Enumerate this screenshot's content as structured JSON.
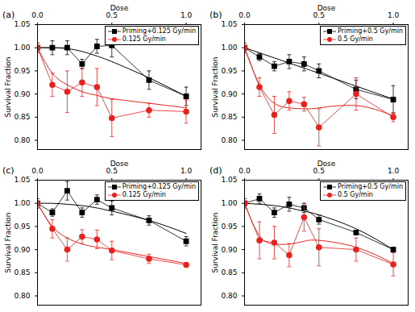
{
  "chart_data": [
    {
      "type": "line",
      "title": "(a)",
      "x_label": "Dose",
      "y_label": "Survival Fraction",
      "x": [
        0,
        0.1,
        0.2,
        0.3,
        0.4,
        0.5,
        0.75,
        1.0
      ],
      "xlim": [
        0,
        1.1
      ],
      "ylim": [
        0.78,
        1.05
      ],
      "xticks": [
        {
          "value": 0,
          "label": "0.0"
        },
        {
          "value": 0.5,
          "label": "0.5"
        },
        {
          "value": 1.0,
          "label": "1.0"
        }
      ],
      "yticks": [
        {
          "value": 0.8,
          "label": "0.80"
        },
        {
          "value": 0.85,
          "label": "0.85"
        },
        {
          "value": 0.9,
          "label": "0.90"
        },
        {
          "value": 0.95,
          "label": "0.95"
        },
        {
          "value": 1.0,
          "label": "1.00"
        },
        {
          "value": 1.05,
          "label": "1.05"
        }
      ],
      "legend": "upper right",
      "series": [
        {
          "name": "Priming+0.125 Gy/min",
          "color": "#000000",
          "marker": "square",
          "line_style": "solid",
          "values": [
            1.0,
            1.0,
            1.0,
            0.965,
            1.003,
            1.005,
            0.93,
            0.895
          ],
          "errors": [
            0.01,
            0.015,
            0.015,
            0.01,
            0.015,
            0.025,
            0.02,
            0.02
          ],
          "fit": [
            1.0,
            1.0,
            0.998,
            0.992,
            0.982,
            0.97,
            0.935,
            0.895
          ]
        },
        {
          "name": "0.125 Gy/min",
          "color": "#e8211c",
          "marker": "circle",
          "line_style": "solid",
          "values": [
            1.0,
            0.92,
            0.905,
            0.925,
            0.915,
            0.848,
            0.865,
            0.862
          ],
          "errors": [
            0.01,
            0.025,
            0.045,
            0.03,
            0.04,
            0.04,
            0.015,
            0.025
          ],
          "fit": [
            1.0,
            0.945,
            0.92,
            0.905,
            0.897,
            0.89,
            0.88,
            0.87
          ]
        }
      ]
    },
    {
      "type": "line",
      "title": "(b)",
      "x_label": "Dose",
      "y_label": "Survival Fraction",
      "x": [
        0,
        0.1,
        0.2,
        0.3,
        0.4,
        0.5,
        0.75,
        1.0
      ],
      "xlim": [
        0,
        1.1
      ],
      "ylim": [
        0.78,
        1.05
      ],
      "xticks": [
        {
          "value": 0,
          "label": "0.0"
        },
        {
          "value": 0.5,
          "label": "0.5"
        },
        {
          "value": 1.0,
          "label": "1.0"
        }
      ],
      "yticks": [
        {
          "value": 0.8,
          "label": "0.80"
        },
        {
          "value": 0.85,
          "label": "0.85"
        },
        {
          "value": 0.9,
          "label": "0.90"
        },
        {
          "value": 0.95,
          "label": "0.95"
        },
        {
          "value": 1.0,
          "label": "1.00"
        },
        {
          "value": 1.05,
          "label": "1.05"
        }
      ],
      "legend": "upper right",
      "series": [
        {
          "name": "Priming+0.5 Gy/min",
          "color": "#000000",
          "marker": "square",
          "line_style": "solid",
          "values": [
            1.0,
            0.98,
            0.96,
            0.97,
            0.965,
            0.95,
            0.91,
            0.888
          ],
          "errors": [
            0.01,
            0.008,
            0.01,
            0.015,
            0.015,
            0.015,
            0.02,
            0.03
          ],
          "fit": [
            1.0,
            0.989,
            0.978,
            0.967,
            0.956,
            0.945,
            0.917,
            0.889
          ]
        },
        {
          "name": "0.5 Gy/min",
          "color": "#e8211c",
          "marker": "circle",
          "line_style": "solid",
          "values": [
            1.0,
            0.915,
            0.855,
            0.885,
            0.878,
            0.828,
            0.9,
            0.85
          ],
          "errors": [
            0.01,
            0.02,
            0.04,
            0.02,
            0.015,
            0.04,
            0.035,
            0.01
          ],
          "fit": [
            1.0,
            0.92,
            0.88,
            0.87,
            0.868,
            0.87,
            0.875,
            0.853
          ]
        }
      ]
    },
    {
      "type": "line",
      "title": "(c)",
      "x_label": "Dose",
      "y_label": "Survival Fraction",
      "x": [
        0,
        0.1,
        0.2,
        0.3,
        0.4,
        0.5,
        0.75,
        1.0
      ],
      "xlim": [
        0,
        1.1
      ],
      "ylim": [
        0.78,
        1.05
      ],
      "xticks": [
        {
          "value": 0,
          "label": "0.0"
        },
        {
          "value": 0.5,
          "label": "0.5"
        },
        {
          "value": 1.0,
          "label": "1.0"
        }
      ],
      "yticks": [
        {
          "value": 0.8,
          "label": "0.80"
        },
        {
          "value": 0.85,
          "label": "0.85"
        },
        {
          "value": 0.9,
          "label": "0.90"
        },
        {
          "value": 0.95,
          "label": "0.95"
        },
        {
          "value": 1.0,
          "label": "1.00"
        },
        {
          "value": 1.05,
          "label": "1.05"
        }
      ],
      "legend": "upper right",
      "series": [
        {
          "name": "Priming+0.125 Gy/min",
          "color": "#000000",
          "marker": "square",
          "line_style": "solid",
          "values": [
            1.0,
            0.98,
            1.027,
            0.98,
            1.008,
            0.99,
            0.963,
            0.918
          ],
          "errors": [
            0.01,
            0.008,
            0.02,
            0.01,
            0.01,
            0.015,
            0.01,
            0.01
          ],
          "fit": [
            1.0,
            1.0,
            0.998,
            0.995,
            0.99,
            0.983,
            0.963,
            0.935
          ]
        },
        {
          "name": "0.125 Gy/min",
          "color": "#e8211c",
          "marker": "circle",
          "line_style": "solid",
          "values": [
            1.0,
            0.945,
            0.9,
            0.928,
            0.922,
            0.898,
            0.88,
            0.867
          ],
          "errors": [
            0.01,
            0.02,
            0.025,
            0.015,
            0.02,
            0.02,
            0.01,
            0.005
          ],
          "fit": [
            1.0,
            0.95,
            0.925,
            0.912,
            0.905,
            0.9,
            0.885,
            0.87
          ]
        }
      ]
    },
    {
      "type": "line",
      "title": "(d)",
      "x_label": "Dose",
      "y_label": "Survival Fraction",
      "x": [
        0,
        0.1,
        0.2,
        0.3,
        0.4,
        0.5,
        0.75,
        1.0
      ],
      "xlim": [
        0,
        1.1
      ],
      "ylim": [
        0.78,
        1.05
      ],
      "xticks": [
        {
          "value": 0,
          "label": "0.0"
        },
        {
          "value": 0.5,
          "label": "0.5"
        },
        {
          "value": 1.0,
          "label": "1.0"
        }
      ],
      "yticks": [
        {
          "value": 0.8,
          "label": "0.80"
        },
        {
          "value": 0.85,
          "label": "0.85"
        },
        {
          "value": 0.9,
          "label": "0.90"
        },
        {
          "value": 0.95,
          "label": "0.95"
        },
        {
          "value": 1.0,
          "label": "1.00"
        },
        {
          "value": 1.05,
          "label": "1.05"
        }
      ],
      "legend": "upper right",
      "series": [
        {
          "name": "Priming+0.5 Gy/min",
          "color": "#000000",
          "marker": "square",
          "line_style": "solid",
          "values": [
            1.0,
            1.01,
            0.98,
            0.998,
            0.99,
            0.965,
            0.937,
            0.9
          ],
          "errors": [
            0.01,
            0.01,
            0.01,
            0.015,
            0.01,
            0.01,
            0.005,
            0.005
          ],
          "fit": [
            1.0,
            0.998,
            0.995,
            0.99,
            0.983,
            0.975,
            0.945,
            0.9
          ]
        },
        {
          "name": "0.5 Gy/min",
          "color": "#e8211c",
          "marker": "circle",
          "line_style": "solid",
          "values": [
            1.0,
            0.92,
            0.915,
            0.888,
            0.97,
            0.905,
            0.9,
            0.868
          ],
          "errors": [
            0.01,
            0.04,
            0.035,
            0.025,
            0.03,
            0.04,
            0.025,
            0.025
          ],
          "fit": [
            1.0,
            0.93,
            0.912,
            0.912,
            0.918,
            0.92,
            0.905,
            0.87
          ]
        }
      ]
    }
  ]
}
